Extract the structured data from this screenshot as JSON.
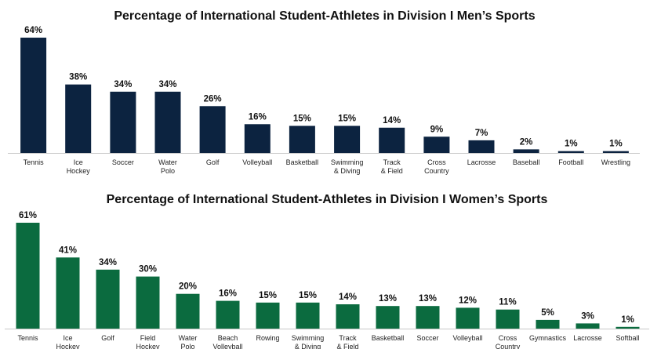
{
  "chart_data": [
    {
      "type": "bar",
      "title": "Percentage of International Student-Athletes in Division I Men’s Sports",
      "categories": [
        "Tennis",
        "Ice\nHockey",
        "Soccer",
        "Water\nPolo",
        "Golf",
        "Volleyball",
        "Basketball",
        "Swimming\n& Diving",
        "Track\n& Field",
        "Cross\nCountry",
        "Lacrosse",
        "Baseball",
        "Football",
        "Wrestling"
      ],
      "values": [
        64,
        38,
        34,
        34,
        26,
        16,
        15,
        15,
        14,
        9,
        7,
        2,
        1,
        1
      ],
      "value_labels": [
        "64%",
        "38%",
        "34%",
        "34%",
        "26%",
        "16%",
        "15%",
        "15%",
        "14%",
        "9%",
        "7%",
        "2%",
        "1%",
        "1%"
      ],
      "color": "#0c2340",
      "ylim": [
        0,
        64
      ]
    },
    {
      "type": "bar",
      "title": "Percentage of International Student-Athletes in Division I Women’s Sports",
      "categories": [
        "Tennis",
        "Ice\nHockey",
        "Golf",
        "Field\nHockey",
        "Water\nPolo",
        "Beach\nVolleyball",
        "Rowing",
        "Swimming\n& Diving",
        "Track\n& Field",
        "Basketball",
        "Soccer",
        "Volleyball",
        "Cross\nCountry",
        "Gymnastics",
        "Lacrosse",
        "Softball"
      ],
      "values": [
        61,
        41,
        34,
        30,
        20,
        16,
        15,
        15,
        14,
        13,
        13,
        12,
        11,
        5,
        3,
        1
      ],
      "value_labels": [
        "61%",
        "41%",
        "34%",
        "30%",
        "20%",
        "16%",
        "15%",
        "15%",
        "14%",
        "13%",
        "13%",
        "12%",
        "11%",
        "5%",
        "3%",
        "1%"
      ],
      "color": "#0b6b3f",
      "ylim": [
        0,
        61
      ]
    }
  ]
}
